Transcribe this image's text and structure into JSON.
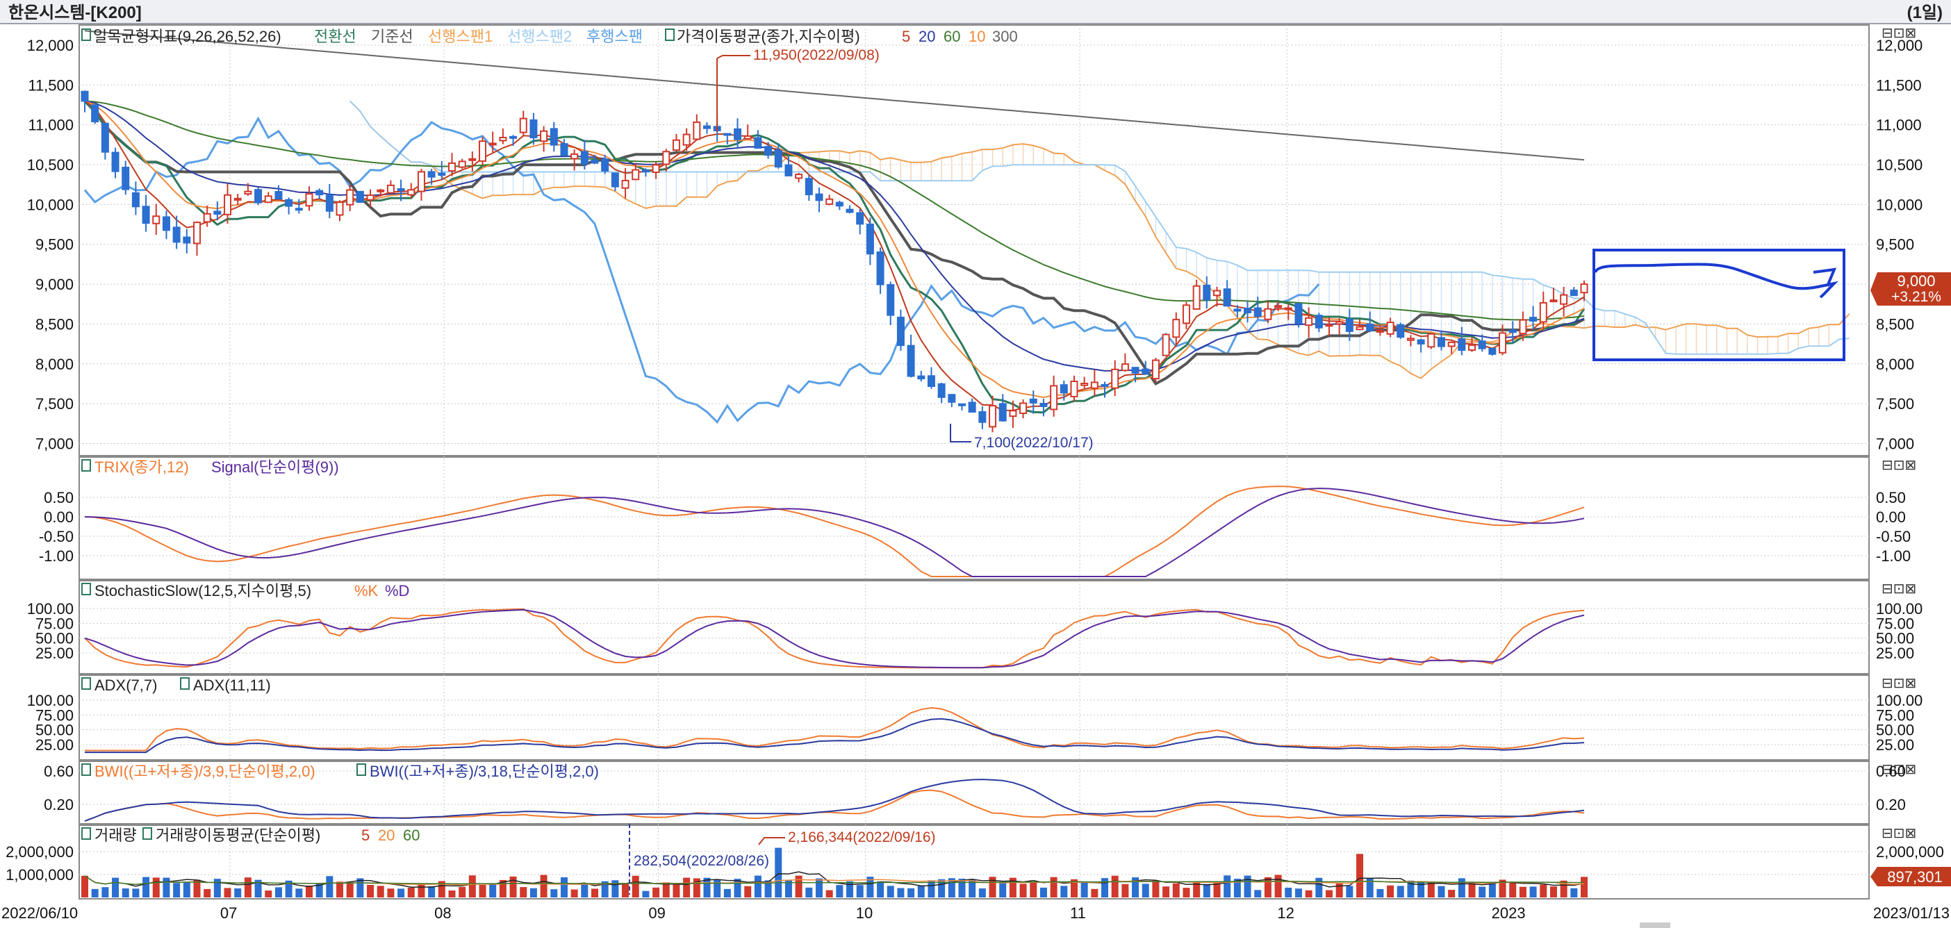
{
  "header": {
    "title": "한온시스템-[K200]",
    "period": "(1일)"
  },
  "colors": {
    "up": "#d0392b",
    "down": "#2b6fd0",
    "tenkan": "#2e7a5c",
    "kijun": "#555555",
    "span1": "#f0a050",
    "span2": "#9fcdf0",
    "lagging": "#5aa0e6",
    "ma5": "#c03b1e",
    "ma20": "#2a3a9e",
    "ma60": "#3c7a2c",
    "ma10": "#f08a3a",
    "ma300": "#666666",
    "trix": "#f07a30",
    "signal": "#5a2a9e",
    "highlight_box": "#1a3ad0",
    "price_tag": "#c03b1e"
  },
  "panels": {
    "price": {
      "legend_name": "일목균형지표(9,26,26,52,26)",
      "legend_items": [
        "전환선",
        "기준선",
        "선행스팬1",
        "선행스팬2",
        "후행스팬"
      ],
      "ma_name": "가격이동평균(종가,지수이평)",
      "ma_periods": [
        "5",
        "20",
        "60",
        "10",
        "300"
      ],
      "ticks": [
        "12,000",
        "11,500",
        "11,000",
        "10,500",
        "10,000",
        "9,500",
        "9,000",
        "8,500",
        "8,000",
        "7,500",
        "7,000"
      ],
      "ymin": 6900,
      "ymax": 12200,
      "high_label": "11,950(2022/09/08)",
      "low_label": "7,100(2022/10/17)",
      "last_price": "9,000",
      "last_change": "+3.21%"
    },
    "trix": {
      "legend": "TRIX(종가,12)",
      "legend2": "Signal(단순이평(9))",
      "ticks": [
        "0.50",
        "0.00",
        "-0.50",
        "-1.00"
      ]
    },
    "stochastic": {
      "legend": "StochasticSlow(12,5,지수이평,5)",
      "legend_k": "%K",
      "legend_d": "%D",
      "ticks": [
        "100.00",
        "75.00",
        "50.00",
        "25.00"
      ]
    },
    "adx": {
      "legend1": "ADX(7,7)",
      "legend2": "ADX(11,11)",
      "ticks": [
        "100.00",
        "75.00",
        "50.00",
        "25.00"
      ]
    },
    "bwi": {
      "legend1": "BWI((고+저+종)/3,9,단순이평,2,0)",
      "legend2": "BWI((고+저+종)/3,18,단순이평,2,0)",
      "ticks": [
        "0.60",
        "0.20"
      ]
    },
    "volume": {
      "legend1": "거래량",
      "legend2": "거래량이동평균(단순이평)",
      "ma_periods": [
        "5",
        "20",
        "60"
      ],
      "ticks": [
        "2,000,000",
        "1,000,000"
      ],
      "high_label": "2,166,344(2022/09/16)",
      "low_label": "282,504(2022/08/26)",
      "last_volume": "897,301"
    }
  },
  "xaxis": {
    "labels": [
      "2022/06/10",
      "07",
      "08",
      "09",
      "10",
      "11",
      "12",
      "2023",
      "2023/01/13"
    ]
  },
  "chart_data": {
    "type": "candlestick",
    "title": "한온시스템-[K200]",
    "period": "daily",
    "x_range": [
      "2022/06/10",
      "2023/01/13"
    ],
    "price_range": [
      7000,
      12000
    ],
    "close_keypoints": [
      {
        "x": "2022/06/10",
        "y": 11300
      },
      {
        "x": "2022/06/17",
        "y": 10000
      },
      {
        "x": "2022/06/24",
        "y": 9500
      },
      {
        "x": "2022/07/01",
        "y": 10150
      },
      {
        "x": "2022/07/15",
        "y": 10000
      },
      {
        "x": "2022/07/29",
        "y": 10300
      },
      {
        "x": "2022/08/12",
        "y": 11000
      },
      {
        "x": "2022/08/26",
        "y": 10300
      },
      {
        "x": "2022/09/08",
        "y": 11000
      },
      {
        "x": "2022/09/16",
        "y": 10700
      },
      {
        "x": "2022/09/30",
        "y": 9700
      },
      {
        "x": "2022/10/07",
        "y": 8000
      },
      {
        "x": "2022/10/17",
        "y": 7300
      },
      {
        "x": "2022/10/28",
        "y": 7600
      },
      {
        "x": "2022/11/11",
        "y": 8000
      },
      {
        "x": "2022/11/18",
        "y": 8900
      },
      {
        "x": "2022/12/02",
        "y": 8600
      },
      {
        "x": "2022/12/16",
        "y": 8450
      },
      {
        "x": "2022/12/30",
        "y": 8200
      },
      {
        "x": "2023/01/06",
        "y": 8600
      },
      {
        "x": "2023/01/13",
        "y": 9000
      }
    ],
    "annotations": [
      {
        "label": "11,950(2022/09/08)",
        "type": "high"
      },
      {
        "label": "7,100(2022/10/17)",
        "type": "low"
      },
      {
        "label": "2,166,344(2022/09/16)",
        "type": "volume-high"
      },
      {
        "label": "282,504(2022/08/26)",
        "type": "volume-low"
      }
    ]
  }
}
